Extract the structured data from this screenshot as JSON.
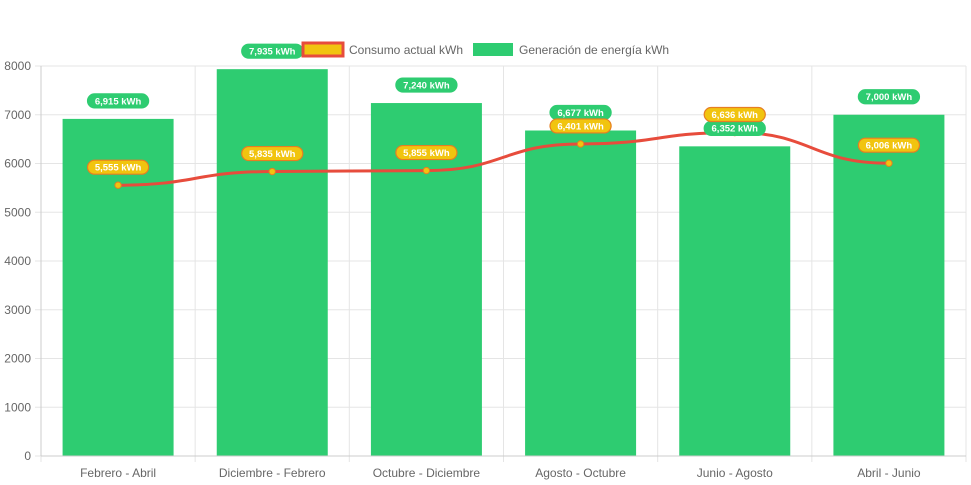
{
  "colors": {
    "generation_bar": "#2ecc71",
    "consumption_line": "#e74c3c",
    "consumption_point": "#f1c40f",
    "consumption_label_bg": "#f1c40f",
    "consumption_label_border": "#e67e22",
    "grid": "#e5e5e5",
    "axis_text": "#666666"
  },
  "chart_data": {
    "type": "bar",
    "categories": [
      "Febrero - Abril",
      "Diciembre - Febrero",
      "Octubre - Diciembre",
      "Agosto - Octubre",
      "Junio - Agosto",
      "Abril - Junio"
    ],
    "series": [
      {
        "name": "Consumo actual kWh",
        "type": "line",
        "values": [
          5555,
          5835,
          5855,
          6401,
          6636,
          6006
        ],
        "labels": [
          "5,555 kWh",
          "5,835 kWh",
          "5,855 kWh",
          "6,401 kWh",
          "6,636 kWh",
          "6,006 kWh"
        ]
      },
      {
        "name": "Generación de energía kWh",
        "type": "bar",
        "values": [
          6915,
          7935,
          7240,
          6677,
          6352,
          7000
        ],
        "labels": [
          "6,915 kWh",
          "7,935 kWh",
          "7,240 kWh",
          "6,677 kWh",
          "6,352 kWh",
          "7,000 kWh"
        ]
      }
    ],
    "y_ticks": [
      "0",
      "1000",
      "2000",
      "3000",
      "4000",
      "5000",
      "6000",
      "7000",
      "8000"
    ],
    "ylim": [
      0,
      8000
    ],
    "grid": true,
    "legend_position": "top",
    "title": "",
    "xlabel": "",
    "ylabel": ""
  }
}
